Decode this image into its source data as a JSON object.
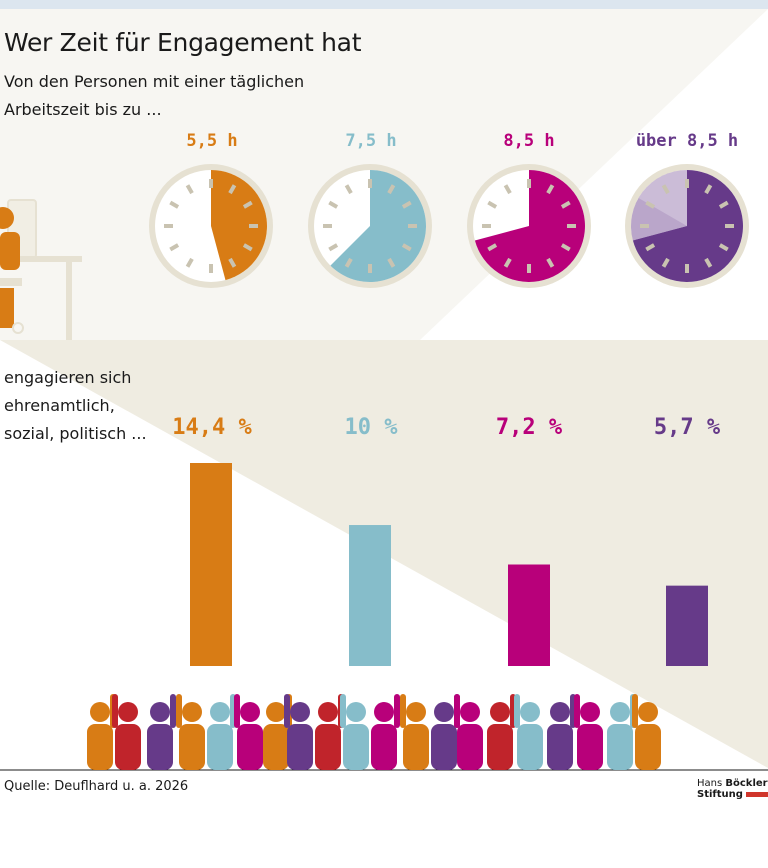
{
  "title": "Wer Zeit für Engagement hat",
  "subtitle_line1": "Von den Personen mit einer täglichen",
  "subtitle_line2": "Arbeitszeit bis zu ...",
  "note_line1": "engagieren sich",
  "note_line2": "ehrenamtlich,",
  "note_line3": "sozial, politisch ...",
  "source": "Quelle: Deuflhard u. a. 2026",
  "logo": {
    "line1_light": "Hans",
    "line1_bold": "Böckler",
    "line2": "Stiftung"
  },
  "colors": {
    "orange": "#d87c15",
    "blue": "#86bdca",
    "magenta": "#b8007a",
    "purple": "#663a89",
    "beige": "#efece1",
    "beige_light": "#f7f6f2"
  },
  "chart_data": {
    "type": "bar",
    "categories": [
      "5,5 h",
      "7,5 h",
      "8,5 h",
      "über 8,5 h"
    ],
    "values": [
      14.4,
      10,
      7.2,
      5.7
    ],
    "value_labels": [
      "14,4 %",
      "10 %",
      "7,2 %",
      "5,7 %"
    ],
    "clock_hours": [
      5.5,
      7.5,
      8.5,
      9.5
    ],
    "colors": [
      "#d87c15",
      "#86bdca",
      "#b8007a",
      "#663a89"
    ],
    "ylim": [
      0,
      14.4
    ],
    "grid": false,
    "legend": "none"
  }
}
